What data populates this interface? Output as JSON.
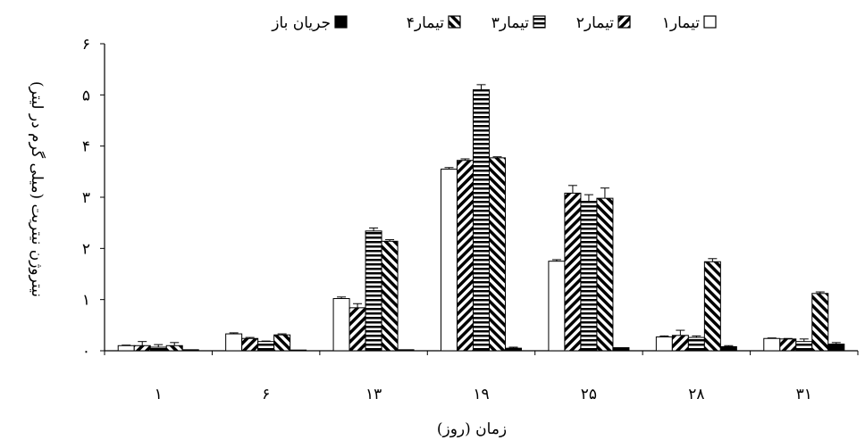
{
  "chart_data": {
    "type": "bar",
    "title": "",
    "xlabel": "زمان (روز)",
    "ylabel": "نیتروژن نیتریت (میلی گرم در لیتر)",
    "categories": [
      "۱",
      "۶",
      "۱۳",
      "۱۹",
      "۲۵",
      "۲۸",
      "۳۱"
    ],
    "ylim": [
      0,
      6
    ],
    "yticks": [
      0,
      1,
      2,
      3,
      4,
      5,
      6
    ],
    "ytick_labels": [
      "۰",
      "۱",
      "۲",
      "۳",
      "۴",
      "۵",
      "۶"
    ],
    "grid": false,
    "legend_position": "top",
    "series": [
      {
        "name": "تیمار۱",
        "pattern": "empty",
        "values": [
          0.1,
          0.33,
          1.02,
          3.55,
          1.75,
          0.27,
          0.24
        ],
        "errors": [
          0.01,
          0.02,
          0.03,
          0.03,
          0.03,
          0.02,
          0.01
        ]
      },
      {
        "name": "تیمار۲",
        "pattern": "backslash",
        "values": [
          0.1,
          0.24,
          0.84,
          3.72,
          3.08,
          0.3,
          0.23
        ],
        "errors": [
          0.08,
          0.02,
          0.08,
          0.03,
          0.15,
          0.1,
          0.01
        ]
      },
      {
        "name": "تیمار۳",
        "pattern": "horizontal",
        "values": [
          0.07,
          0.18,
          2.34,
          5.1,
          2.92,
          0.26,
          0.18
        ],
        "errors": [
          0.05,
          0.01,
          0.06,
          0.1,
          0.13,
          0.03,
          0.05
        ]
      },
      {
        "name": "تیمار۴",
        "pattern": "slash",
        "values": [
          0.1,
          0.31,
          2.14,
          3.77,
          2.98,
          1.74,
          1.12
        ],
        "errors": [
          0.06,
          0.02,
          0.03,
          0.02,
          0.2,
          0.06,
          0.03
        ]
      },
      {
        "name": "جریان باز",
        "pattern": "solid",
        "values": [
          0.02,
          0.01,
          0.02,
          0.05,
          0.06,
          0.08,
          0.13
        ],
        "errors": [
          0.0,
          0.0,
          0.0,
          0.02,
          0.0,
          0.02,
          0.03
        ]
      }
    ]
  }
}
